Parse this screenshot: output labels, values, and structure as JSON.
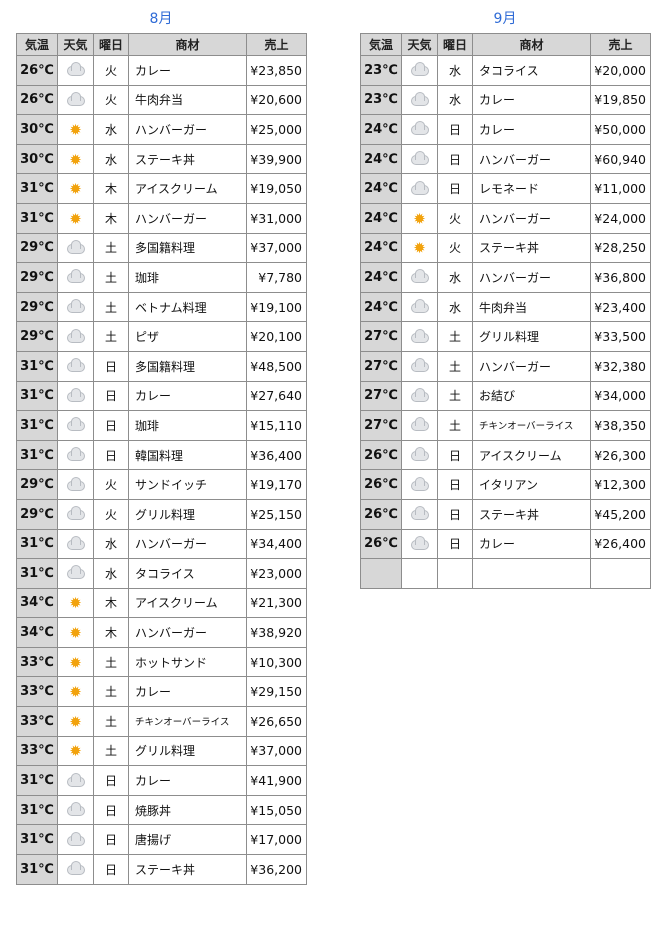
{
  "august": {
    "title": "8月",
    "headers": [
      "気温",
      "天気",
      "曜日",
      "商材",
      "売上"
    ],
    "rows": [
      {
        "temp": "26℃",
        "weather": "cloud",
        "day": "火",
        "item": "カレー",
        "sales": "¥23,850"
      },
      {
        "temp": "26℃",
        "weather": "cloud",
        "day": "火",
        "item": "牛肉弁当",
        "sales": "¥20,600"
      },
      {
        "temp": "30℃",
        "weather": "sun",
        "day": "水",
        "item": "ハンバーガー",
        "sales": "¥25,000"
      },
      {
        "temp": "30℃",
        "weather": "sun",
        "day": "水",
        "item": "ステーキ丼",
        "sales": "¥39,900"
      },
      {
        "temp": "31℃",
        "weather": "sun",
        "day": "木",
        "item": "アイスクリーム",
        "sales": "¥19,050"
      },
      {
        "temp": "31℃",
        "weather": "sun",
        "day": "木",
        "item": "ハンバーガー",
        "sales": "¥31,000"
      },
      {
        "temp": "29℃",
        "weather": "cloud",
        "day": "土",
        "item": "多国籍料理",
        "sales": "¥37,000"
      },
      {
        "temp": "29℃",
        "weather": "cloud",
        "day": "土",
        "item": "珈琲",
        "sales": "¥7,780"
      },
      {
        "temp": "29℃",
        "weather": "cloud",
        "day": "土",
        "item": "ベトナム料理",
        "sales": "¥19,100"
      },
      {
        "temp": "29℃",
        "weather": "cloud",
        "day": "土",
        "item": "ピザ",
        "sales": "¥20,100"
      },
      {
        "temp": "31℃",
        "weather": "cloud",
        "day": "日",
        "item": "多国籍料理",
        "sales": "¥48,500"
      },
      {
        "temp": "31℃",
        "weather": "cloud",
        "day": "日",
        "item": "カレー",
        "sales": "¥27,640"
      },
      {
        "temp": "31℃",
        "weather": "cloud",
        "day": "日",
        "item": "珈琲",
        "sales": "¥15,110"
      },
      {
        "temp": "31℃",
        "weather": "cloud",
        "day": "日",
        "item": "韓国料理",
        "sales": "¥36,400"
      },
      {
        "temp": "29℃",
        "weather": "cloud",
        "day": "火",
        "item": "サンドイッチ",
        "sales": "¥19,170"
      },
      {
        "temp": "29℃",
        "weather": "cloud",
        "day": "火",
        "item": "グリル料理",
        "sales": "¥25,150"
      },
      {
        "temp": "31℃",
        "weather": "cloud",
        "day": "水",
        "item": "ハンバーガー",
        "sales": "¥34,400"
      },
      {
        "temp": "31℃",
        "weather": "cloud",
        "day": "水",
        "item": "タコライス",
        "sales": "¥23,000"
      },
      {
        "temp": "34℃",
        "weather": "sun",
        "day": "木",
        "item": "アイスクリーム",
        "sales": "¥21,300"
      },
      {
        "temp": "34℃",
        "weather": "sun",
        "day": "木",
        "item": "ハンバーガー",
        "sales": "¥38,920"
      },
      {
        "temp": "33℃",
        "weather": "sun",
        "day": "土",
        "item": "ホットサンド",
        "sales": "¥10,300"
      },
      {
        "temp": "33℃",
        "weather": "sun",
        "day": "土",
        "item": "カレー",
        "sales": "¥29,150"
      },
      {
        "temp": "33℃",
        "weather": "sun",
        "day": "土",
        "item": "チキンオーバーライス",
        "sales": "¥26,650"
      },
      {
        "temp": "33℃",
        "weather": "sun",
        "day": "土",
        "item": "グリル料理",
        "sales": "¥37,000"
      },
      {
        "temp": "31℃",
        "weather": "cloud",
        "day": "日",
        "item": "カレー",
        "sales": "¥41,900"
      },
      {
        "temp": "31℃",
        "weather": "cloud",
        "day": "日",
        "item": "焼豚丼",
        "sales": "¥15,050"
      },
      {
        "temp": "31℃",
        "weather": "cloud",
        "day": "日",
        "item": "唐揚げ",
        "sales": "¥17,000"
      },
      {
        "temp": "31℃",
        "weather": "cloud",
        "day": "日",
        "item": "ステーキ丼",
        "sales": "¥36,200"
      }
    ]
  },
  "september": {
    "title": "9月",
    "headers": [
      "気温",
      "天気",
      "曜日",
      "商材",
      "売上"
    ],
    "rows": [
      {
        "temp": "23℃",
        "weather": "cloud",
        "day": "水",
        "item": "タコライス",
        "sales": "¥20,000"
      },
      {
        "temp": "23℃",
        "weather": "cloud",
        "day": "水",
        "item": "カレー",
        "sales": "¥19,850"
      },
      {
        "temp": "24℃",
        "weather": "cloud",
        "day": "日",
        "item": "カレー",
        "sales": "¥50,000"
      },
      {
        "temp": "24℃",
        "weather": "cloud",
        "day": "日",
        "item": "ハンバーガー",
        "sales": "¥60,940"
      },
      {
        "temp": "24℃",
        "weather": "cloud",
        "day": "日",
        "item": "レモネード",
        "sales": "¥11,000"
      },
      {
        "temp": "24℃",
        "weather": "sun",
        "day": "火",
        "item": "ハンバーガー",
        "sales": "¥24,000"
      },
      {
        "temp": "24℃",
        "weather": "sun",
        "day": "火",
        "item": "ステーキ丼",
        "sales": "¥28,250"
      },
      {
        "temp": "24℃",
        "weather": "cloud",
        "day": "水",
        "item": "ハンバーガー",
        "sales": "¥36,800"
      },
      {
        "temp": "24℃",
        "weather": "cloud",
        "day": "水",
        "item": "牛肉弁当",
        "sales": "¥23,400"
      },
      {
        "temp": "27℃",
        "weather": "cloud",
        "day": "土",
        "item": "グリル料理",
        "sales": "¥33,500"
      },
      {
        "temp": "27℃",
        "weather": "cloud",
        "day": "土",
        "item": "ハンバーガー",
        "sales": "¥32,380"
      },
      {
        "temp": "27℃",
        "weather": "cloud",
        "day": "土",
        "item": "お結び",
        "sales": "¥34,000"
      },
      {
        "temp": "27℃",
        "weather": "cloud",
        "day": "土",
        "item": "チキンオーバーライス",
        "sales": "¥38,350"
      },
      {
        "temp": "26℃",
        "weather": "cloud",
        "day": "日",
        "item": "アイスクリーム",
        "sales": "¥26,300"
      },
      {
        "temp": "26℃",
        "weather": "cloud",
        "day": "日",
        "item": "イタリアン",
        "sales": "¥12,300"
      },
      {
        "temp": "26℃",
        "weather": "cloud",
        "day": "日",
        "item": "ステーキ丼",
        "sales": "¥45,200"
      },
      {
        "temp": "26℃",
        "weather": "cloud",
        "day": "日",
        "item": "カレー",
        "sales": "¥26,400"
      },
      {
        "temp": "",
        "weather": "",
        "day": "",
        "item": "",
        "sales": ""
      }
    ]
  },
  "icons": {
    "cloud": "cloud-icon",
    "sun": "sun-icon"
  },
  "colors": {
    "title": "#2f6bd6",
    "header_bg": "#d7d7d7",
    "temp_bg": "#d7d7d7",
    "sun": "#f2a20c",
    "grid": "#8d8d8d"
  }
}
